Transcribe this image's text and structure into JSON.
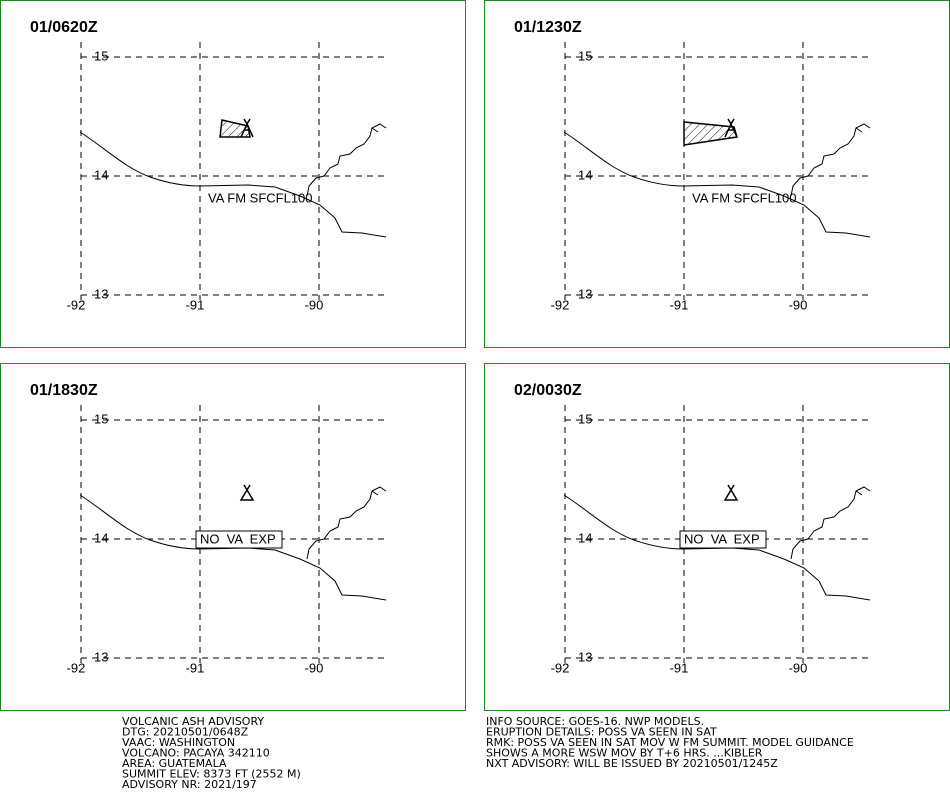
{
  "panels": [
    {
      "time": "01/0620Z",
      "lat_labels": [
        "15",
        "14",
        "13"
      ],
      "lon_labels": [
        "-92",
        "-91",
        "-90"
      ],
      "annotation": "VA FM SFCFL100"
    },
    {
      "time": "01/1230Z",
      "lat_labels": [
        "15",
        "14",
        "13"
      ],
      "lon_labels": [
        "-92",
        "-91",
        "-90"
      ],
      "annotation": "VA FM SFCFL100"
    },
    {
      "time": "01/1830Z",
      "lat_labels": [
        "15",
        "14",
        "13"
      ],
      "lon_labels": [
        "-92",
        "-91",
        "-90"
      ],
      "annotation": "NO  VA  EXP"
    },
    {
      "time": "02/0030Z",
      "lat_labels": [
        "15",
        "14",
        "13"
      ],
      "lon_labels": [
        "-92",
        "-91",
        "-90"
      ],
      "annotation": "NO  VA  EXP"
    }
  ],
  "info_left": [
    "VOLCANIC ASH ADVISORY",
    "DTG: 20210501/0648Z",
    "VAAC: WASHINGTON",
    "VOLCANO: PACAYA 342110",
    "AREA: GUATEMALA",
    "SUMMIT ELEV: 8373 FT (2552 M)",
    "ADVISORY NR: 2021/197"
  ],
  "info_right": [
    "INFO SOURCE: GOES-16. NWP MODELS.",
    "ERUPTION DETAILS: POSS VA SEEN IN SAT",
    "RMK: POSS VA SEEN IN SAT MOV W FM SUMMIT. MODEL GUIDANCE",
    "SHOWS A MORE WSW MOV BY T+6 HRS. ...KIBLER",
    "NXT ADVISORY: WILL BE ISSUED BY 20210501/1245Z"
  ]
}
